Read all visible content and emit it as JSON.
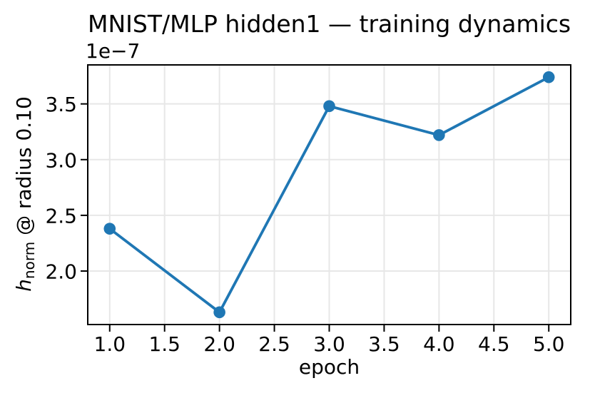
{
  "figure": {
    "background": "#ffffff"
  },
  "chart_data": {
    "type": "line",
    "title": "MNIST/MLP hidden1 — training dynamics",
    "xlabel": "epoch",
    "ylabel": "h_norm @ radius 0.10",
    "ylabel_parts": {
      "var": "h",
      "sub": "norm",
      "rest": " @ radius 0.10"
    },
    "y_offset_text": "1e−7",
    "x": [
      1.0,
      2.0,
      3.0,
      4.0,
      5.0
    ],
    "y": [
      2.38,
      1.63,
      3.48,
      3.22,
      3.74
    ],
    "y_scale_note": "y values are in units of 1e−7",
    "xlim": [
      0.8,
      5.2
    ],
    "ylim": [
      1.52,
      3.85
    ],
    "xticks": [
      1.0,
      1.5,
      2.0,
      2.5,
      3.0,
      3.5,
      4.0,
      4.5,
      5.0
    ],
    "xtick_labels": [
      "1.0",
      "1.5",
      "2.0",
      "2.5",
      "3.0",
      "3.5",
      "4.0",
      "4.5",
      "5.0"
    ],
    "yticks": [
      2.0,
      2.5,
      3.0,
      3.5
    ],
    "ytick_labels": [
      "2.0",
      "2.5",
      "3.0",
      "3.5"
    ],
    "grid": true,
    "legend": false,
    "marker": "circle",
    "colors": {
      "line": "#1f77b4",
      "grid": "#e7e7e7",
      "spine": "#000000",
      "text": "#000000"
    }
  }
}
